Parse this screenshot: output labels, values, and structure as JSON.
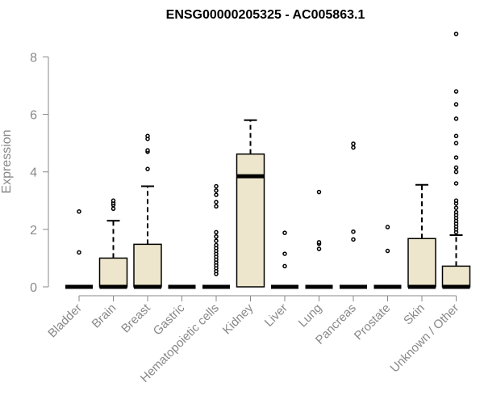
{
  "chart_data": {
    "type": "boxplot",
    "title": "ENSG00000205325 - AC005863.1",
    "xlabel": "",
    "ylabel": "Expression",
    "ylim": [
      0,
      8.8
    ],
    "yticks": [
      0,
      2,
      4,
      6,
      8
    ],
    "grid": false,
    "legend": "none",
    "box_fill": "#ede6cc",
    "box_stroke": "#000000",
    "categories": [
      "Bladder",
      "Brain",
      "Breast",
      "Gastric",
      "Hematopoietic cells",
      "Kidney",
      "Liver",
      "Lung",
      "Pancreas",
      "Prostate",
      "Skin",
      "Unknown / Other"
    ],
    "boxes": [
      {
        "category": "Bladder",
        "q1": 0,
        "median": 0,
        "q3": 0,
        "whisker_low": 0,
        "whisker_high": 0,
        "outliers": [
          1.2,
          2.62
        ]
      },
      {
        "category": "Brain",
        "q1": 0,
        "median": 0,
        "q3": 1.0,
        "whisker_low": 0,
        "whisker_high": 2.3,
        "outliers": [
          2.72,
          2.85,
          2.92,
          3.0
        ]
      },
      {
        "category": "Breast",
        "q1": 0,
        "median": 0,
        "q3": 1.48,
        "whisker_low": 0,
        "whisker_high": 3.5,
        "outliers": [
          4.1,
          4.7,
          4.75,
          5.15,
          5.25
        ]
      },
      {
        "category": "Gastric",
        "q1": 0,
        "median": 0,
        "q3": 0,
        "whisker_low": 0,
        "whisker_high": 0,
        "outliers": []
      },
      {
        "category": "Hematopoietic cells",
        "q1": 0,
        "median": 0,
        "q3": 0,
        "whisker_low": 0,
        "whisker_high": 0,
        "outliers": [
          0.45,
          0.55,
          0.65,
          0.75,
          0.85,
          0.95,
          1.05,
          1.15,
          1.25,
          1.35,
          1.45,
          1.6,
          1.75,
          1.9,
          2.8,
          2.95,
          3.2,
          3.35,
          3.5
        ]
      },
      {
        "category": "Kidney",
        "q1": 0,
        "median": 3.85,
        "q3": 4.62,
        "whisker_low": 0,
        "whisker_high": 5.8,
        "outliers": []
      },
      {
        "category": "Liver",
        "q1": 0,
        "median": 0,
        "q3": 0,
        "whisker_low": 0,
        "whisker_high": 0,
        "outliers": [
          0.72,
          1.15,
          1.88
        ]
      },
      {
        "category": "Lung",
        "q1": 0,
        "median": 0,
        "q3": 0,
        "whisker_low": 0,
        "whisker_high": 0,
        "outliers": [
          1.32,
          1.5,
          1.55,
          3.3
        ]
      },
      {
        "category": "Pancreas",
        "q1": 0,
        "median": 0,
        "q3": 0,
        "whisker_low": 0,
        "whisker_high": 0,
        "outliers": [
          1.65,
          1.92,
          4.85,
          4.98
        ]
      },
      {
        "category": "Prostate",
        "q1": 0,
        "median": 0,
        "q3": 0,
        "whisker_low": 0,
        "whisker_high": 0,
        "outliers": [
          1.25,
          2.08
        ]
      },
      {
        "category": "Skin",
        "q1": 0,
        "median": 0,
        "q3": 1.68,
        "whisker_low": 0,
        "whisker_high": 3.55,
        "outliers": []
      },
      {
        "category": "Unknown / Other",
        "q1": 0,
        "median": 0,
        "q3": 0.72,
        "whisker_low": 0,
        "whisker_high": 1.8,
        "outliers": [
          1.9,
          2.0,
          2.1,
          2.2,
          2.3,
          2.4,
          2.5,
          2.6,
          2.75,
          2.9,
          3.0,
          3.6,
          4.0,
          4.15,
          4.5,
          5.0,
          5.25,
          5.85,
          6.35,
          6.8,
          8.8
        ]
      }
    ]
  }
}
